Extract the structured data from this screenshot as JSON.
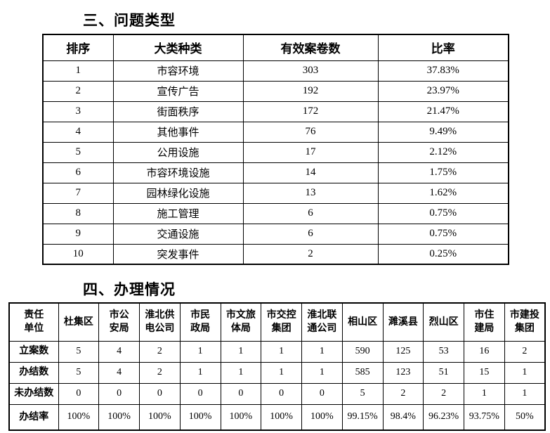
{
  "section1": {
    "title": "三、问题类型",
    "table": {
      "headers": [
        "排序",
        "大类种类",
        "有效案卷数",
        "比率"
      ],
      "rows": [
        [
          "1",
          "市容环境",
          "303",
          "37.83%"
        ],
        [
          "2",
          "宣传广告",
          "192",
          "23.97%"
        ],
        [
          "3",
          "街面秩序",
          "172",
          "21.47%"
        ],
        [
          "4",
          "其他事件",
          "76",
          "9.49%"
        ],
        [
          "5",
          "公用设施",
          "17",
          "2.12%"
        ],
        [
          "6",
          "市容环境设施",
          "14",
          "1.75%"
        ],
        [
          "7",
          "园林绿化设施",
          "13",
          "1.62%"
        ],
        [
          "8",
          "施工管理",
          "6",
          "0.75%"
        ],
        [
          "9",
          "交通设施",
          "6",
          "0.75%"
        ],
        [
          "10",
          "突发事件",
          "2",
          "0.25%"
        ]
      ]
    }
  },
  "section2": {
    "title": "四、办理情况",
    "table": {
      "corner_header": "责任\n单位",
      "unit_headers": [
        "杜集区",
        "市公\n安局",
        "淮北供\n电公司",
        "市民\n政局",
        "市文旅\n体局",
        "市交控\n集团",
        "淮北联\n通公司",
        "相山区",
        "濉溪县",
        "烈山区",
        "市住\n建局",
        "市建投\n集团"
      ],
      "rows": [
        {
          "label": "立案数",
          "values": [
            "5",
            "4",
            "2",
            "1",
            "1",
            "1",
            "1",
            "590",
            "125",
            "53",
            "16",
            "2"
          ]
        },
        {
          "label": "办结数",
          "values": [
            "5",
            "4",
            "2",
            "1",
            "1",
            "1",
            "1",
            "585",
            "123",
            "51",
            "15",
            "1"
          ]
        },
        {
          "label": "未办结数",
          "values": [
            "0",
            "0",
            "0",
            "0",
            "0",
            "0",
            "0",
            "5",
            "2",
            "2",
            "1",
            "1"
          ]
        },
        {
          "label": "办结率",
          "values": [
            "100%",
            "100%",
            "100%",
            "100%",
            "100%",
            "100%",
            "100%",
            "99.15%",
            "98.4%",
            "96.23%",
            "93.75%",
            "50%"
          ]
        }
      ]
    }
  },
  "colors": {
    "text": "#000000",
    "border": "#000000",
    "background": "#ffffff"
  }
}
